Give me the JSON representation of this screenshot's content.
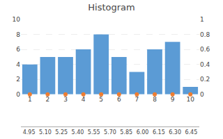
{
  "chart_data": {
    "type": "bar",
    "title": "Histogram",
    "categories": [
      1,
      2,
      3,
      4,
      5,
      6,
      7,
      8,
      9,
      10
    ],
    "series": [
      {
        "type": "bar",
        "color": "#5b9bd5",
        "values": [
          4,
          5,
          5,
          6,
          8,
          5,
          3,
          6,
          7,
          1
        ]
      },
      {
        "type": "scatter",
        "color": "#ed7d31",
        "values": [
          0,
          0,
          0,
          0,
          0,
          0,
          0,
          0,
          0,
          0
        ]
      }
    ],
    "bins": [
      4.95,
      {
        "value": 5.1,
        "label": "5.10"
      },
      5.25,
      {
        "value": 5.4,
        "label": "5.40"
      },
      5.55,
      {
        "value": 5.7,
        "label": "5.70"
      },
      5.85,
      {
        "value": 6,
        "label": "6.00"
      },
      6.15,
      {
        "value": 6.3,
        "label": "6.30"
      },
      6.45
    ],
    "xlim": [
      0.5,
      10.5
    ],
    "xticks": [
      1,
      2,
      3,
      4,
      5,
      6,
      7,
      8,
      9,
      10
    ],
    "ylim": [
      0,
      10
    ],
    "yticks": [
      0,
      2,
      4,
      6,
      8,
      10
    ],
    "y2lim": [
      0,
      1
    ],
    "y2ticks": [
      0,
      0.2,
      0.4,
      0.6,
      0.8,
      1
    ],
    "grid": true
  }
}
